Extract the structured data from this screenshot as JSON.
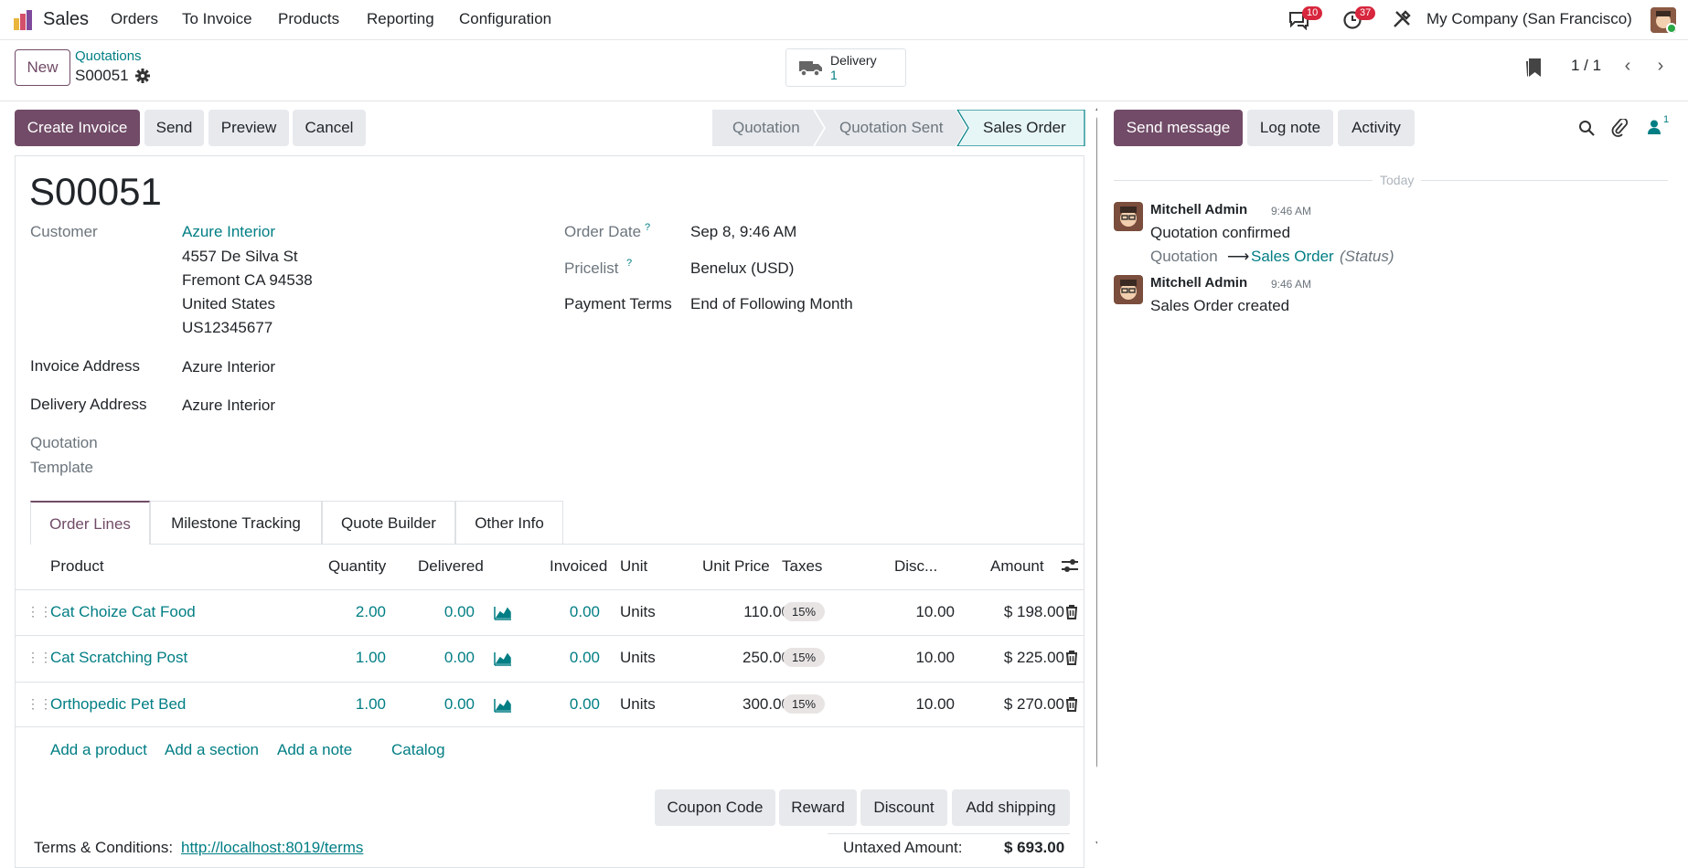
{
  "navbar": {
    "app_name": "Sales",
    "menu": [
      "Orders",
      "To Invoice",
      "Products",
      "Reporting",
      "Configuration"
    ],
    "messages_count": "10",
    "activities_count": "37",
    "company": "My Company (San Francisco)"
  },
  "control": {
    "new_label": "New",
    "breadcrumb_parent": "Quotations",
    "record_name": "S00051",
    "smart_button_label": "Delivery",
    "smart_button_count": "1",
    "pager": "1 / 1"
  },
  "actions": {
    "create_invoice": "Create Invoice",
    "send": "Send",
    "preview": "Preview",
    "cancel": "Cancel"
  },
  "statusbar": [
    "Quotation",
    "Quotation Sent",
    "Sales Order"
  ],
  "form": {
    "title": "S00051",
    "customer_label": "Customer",
    "customer_name": "Azure Interior",
    "address_lines": [
      "4557 De Silva St",
      "Fremont CA 94538",
      "United States",
      "US12345677"
    ],
    "invoice_address_label": "Invoice Address",
    "invoice_address": "Azure Interior",
    "delivery_address_label": "Delivery Address",
    "delivery_address": "Azure Interior",
    "quotation_template_label_1": "Quotation",
    "quotation_template_label_2": "Template",
    "order_date_label": "Order Date",
    "order_date": "Sep 8, 9:46 AM",
    "pricelist_label": "Pricelist",
    "pricelist": "Benelux (USD)",
    "payment_terms_label": "Payment Terms",
    "payment_terms": "End of Following Month",
    "help_mark": "?"
  },
  "tabs": [
    "Order Lines",
    "Milestone Tracking",
    "Quote Builder",
    "Other Info"
  ],
  "table": {
    "headers": [
      "Product",
      "Quantity",
      "Delivered",
      "Invoiced",
      "Unit",
      "Unit Price",
      "Taxes",
      "Disc...",
      "Amount"
    ],
    "rows": [
      {
        "product": "Cat Choize Cat Food",
        "quantity": "2.00",
        "delivered": "0.00",
        "invoiced": "0.00",
        "unit": "Units",
        "unit_price": "110.00",
        "taxes": "15%",
        "discount": "10.00",
        "amount": "$ 198.00"
      },
      {
        "product": "Cat Scratching Post",
        "quantity": "1.00",
        "delivered": "0.00",
        "invoiced": "0.00",
        "unit": "Units",
        "unit_price": "250.00",
        "taxes": "15%",
        "discount": "10.00",
        "amount": "$ 225.00"
      },
      {
        "product": "Orthopedic Pet Bed",
        "quantity": "1.00",
        "delivered": "0.00",
        "invoiced": "0.00",
        "unit": "Units",
        "unit_price": "300.00",
        "taxes": "15%",
        "discount": "10.00",
        "amount": "$ 270.00"
      }
    ],
    "add_product": "Add a product",
    "add_section": "Add a section",
    "add_note": "Add a note",
    "catalog": "Catalog"
  },
  "footer_buttons": {
    "coupon": "Coupon Code",
    "reward": "Reward",
    "discount": "Discount",
    "shipping": "Add shipping"
  },
  "terms": {
    "label": "Terms & Conditions:",
    "link": "http://localhost:8019/terms"
  },
  "totals": {
    "untaxed_label": "Untaxed Amount:",
    "untaxed_value": "$ 693.00"
  },
  "chatter": {
    "send_message": "Send message",
    "log_note": "Log note",
    "activity": "Activity",
    "followers_count": "1",
    "date_separator": "Today",
    "messages": [
      {
        "author": "Mitchell Admin",
        "time": "9:46 AM",
        "body": "Quotation confirmed",
        "tracking_old": "Quotation",
        "tracking_new": "Sales Order",
        "tracking_field": "(Status)"
      },
      {
        "author": "Mitchell Admin",
        "time": "9:46 AM",
        "body": "Sales Order created"
      }
    ]
  },
  "colors": {
    "primary": "#714b67",
    "link": "#017e84",
    "badge": "#d7263d"
  }
}
